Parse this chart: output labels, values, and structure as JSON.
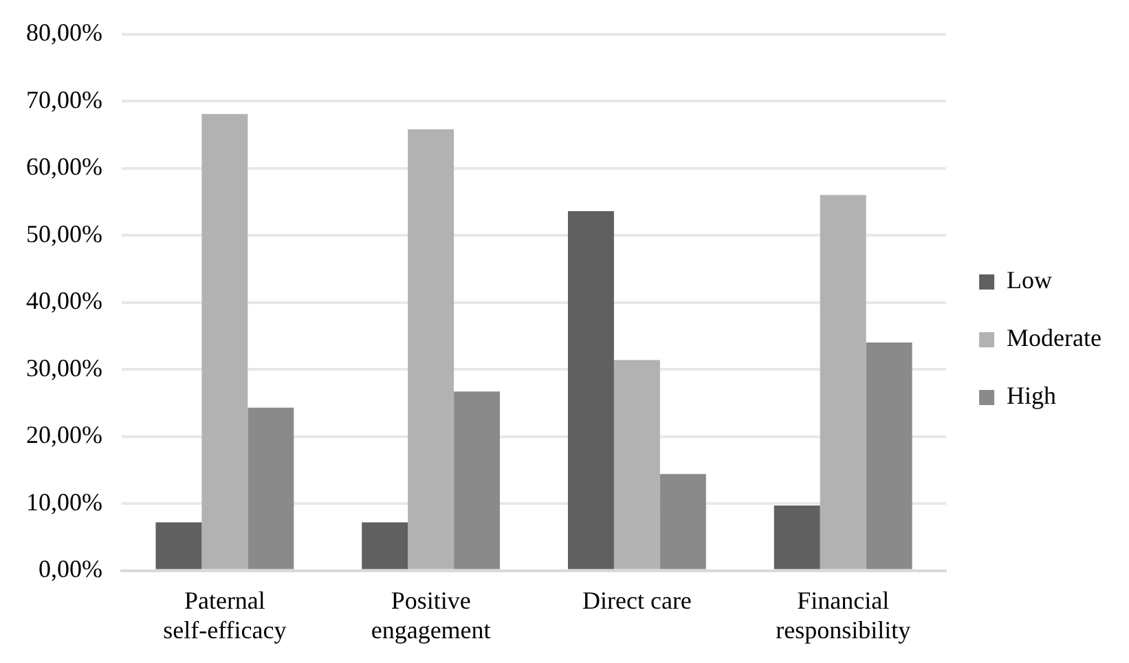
{
  "chart_data": {
    "type": "bar",
    "categories": [
      "Paternal self-efficacy",
      "Positive engagement",
      "Direct care",
      "Financial responsibility"
    ],
    "series": [
      {
        "name": "Low",
        "color": "#606060",
        "values": [
          7.2,
          7.2,
          53.6,
          9.7
        ]
      },
      {
        "name": "Moderate",
        "color": "#b2b2b2",
        "values": [
          68.1,
          65.8,
          31.4,
          56.0
        ]
      },
      {
        "name": "High",
        "color": "#8a8a8a",
        "values": [
          24.3,
          26.7,
          14.4,
          34.0
        ]
      }
    ],
    "ylim": [
      0,
      80
    ],
    "yticks": [
      {
        "value": 0,
        "label": "0,00%"
      },
      {
        "value": 10,
        "label": "10,00%"
      },
      {
        "value": 20,
        "label": "20,00%"
      },
      {
        "value": 30,
        "label": "30,00%"
      },
      {
        "value": 40,
        "label": "40,00%"
      },
      {
        "value": 50,
        "label": "50,00%"
      },
      {
        "value": 60,
        "label": "60,00%"
      },
      {
        "value": 70,
        "label": "70,00%"
      },
      {
        "value": 80,
        "label": "80,00%"
      }
    ],
    "grid": "y",
    "legend": "right"
  }
}
